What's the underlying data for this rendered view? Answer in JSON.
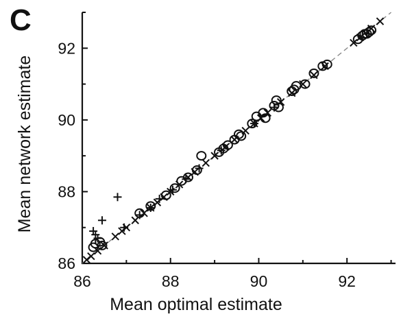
{
  "panel": {
    "label": "C"
  },
  "chart_data": {
    "type": "scatter",
    "title": "",
    "xlabel": "Mean optimal estimate",
    "ylabel": "Mean network estimate",
    "xlim": [
      86,
      93.1
    ],
    "ylim": [
      86,
      93
    ],
    "xticks": [
      86,
      88,
      90,
      92
    ],
    "yticks": [
      86,
      88,
      90,
      92
    ],
    "minor_xticks": [
      87,
      89,
      91,
      93
    ],
    "minor_yticks": [
      87,
      89,
      91,
      93
    ],
    "grid": false,
    "identity_line": [
      [
        86,
        86
      ],
      [
        93,
        93
      ]
    ],
    "colors": {
      "axis": "#111111",
      "identity_line": "#888888",
      "markers": "#111111"
    },
    "series": [
      {
        "marker": "circle",
        "x": [
          86.25,
          86.3,
          86.4,
          86.45,
          87.3,
          87.55,
          87.9,
          88.1,
          88.25,
          88.4,
          88.7,
          88.6,
          89.2,
          89.1,
          89.3,
          89.45,
          89.55,
          89.6,
          89.85,
          89.95,
          90.1,
          90.15,
          90.35,
          90.4,
          90.45,
          90.75,
          90.8,
          90.85,
          91.05,
          91.25,
          91.45,
          91.55,
          92.25,
          92.35,
          92.4,
          92.45,
          92.5,
          92.55
        ],
        "y": [
          86.45,
          86.55,
          86.6,
          86.5,
          87.4,
          87.6,
          87.9,
          88.1,
          88.3,
          88.4,
          89.0,
          88.6,
          89.2,
          89.1,
          89.3,
          89.45,
          89.6,
          89.55,
          89.9,
          90.1,
          90.2,
          90.05,
          90.4,
          90.55,
          90.35,
          90.8,
          90.85,
          90.95,
          91.0,
          91.3,
          91.5,
          91.55,
          92.25,
          92.35,
          92.4,
          92.4,
          92.45,
          92.5
        ]
      },
      {
        "marker": "plus",
        "x": [
          86.3,
          86.35,
          86.25,
          86.45,
          86.8,
          86.95,
          87.3,
          87.55,
          87.75,
          88.05,
          88.35,
          88.65,
          89.15,
          89.9,
          90.35,
          92.45
        ],
        "y": [
          86.8,
          86.7,
          86.9,
          87.2,
          87.85,
          87.0,
          87.35,
          87.55,
          87.8,
          88.05,
          88.35,
          88.65,
          89.15,
          89.9,
          90.35,
          92.4
        ]
      },
      {
        "marker": "x",
        "x": [
          86.1,
          86.2,
          86.35,
          86.5,
          86.75,
          86.9,
          87.0,
          87.2,
          87.4,
          87.55,
          87.7,
          87.85,
          88.0,
          88.2,
          88.4,
          88.55,
          88.8,
          89.0,
          89.25,
          89.45,
          89.7,
          89.9,
          90.05,
          90.2,
          90.5,
          90.75,
          91.0,
          91.25,
          91.5,
          92.15,
          92.3,
          92.55,
          92.75
        ],
        "y": [
          86.1,
          86.2,
          86.35,
          86.5,
          86.75,
          86.9,
          87.0,
          87.2,
          87.4,
          87.55,
          87.7,
          87.85,
          88.0,
          88.2,
          88.4,
          88.55,
          88.8,
          89.0,
          89.25,
          89.45,
          89.7,
          89.9,
          90.05,
          90.2,
          90.5,
          90.75,
          91.0,
          91.25,
          91.5,
          92.15,
          92.3,
          92.55,
          92.75
        ]
      }
    ]
  }
}
